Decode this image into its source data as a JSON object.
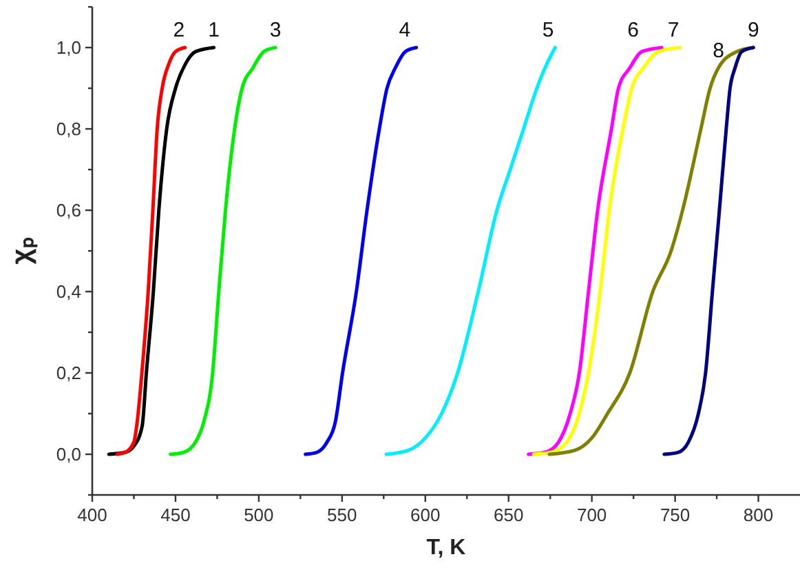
{
  "chart_data": {
    "type": "line",
    "xlabel": "T, K",
    "ylabel": "χₚ",
    "xlim": [
      400,
      825
    ],
    "ylim": [
      -0.1,
      1.1
    ],
    "xticks": [
      400,
      {
        "value": 425,
        "label": null
      },
      450,
      {
        "value": 475,
        "label": null
      },
      500,
      {
        "value": 525,
        "label": null
      },
      550,
      {
        "value": 575,
        "label": null
      },
      600,
      {
        "value": 625,
        "label": null
      },
      650,
      {
        "value": 675,
        "label": null
      },
      700,
      {
        "value": 725,
        "label": null
      },
      750,
      {
        "value": 775,
        "label": null
      },
      800
    ],
    "yticks": [
      {
        "value": -0.1,
        "label": null
      },
      {
        "value": 0,
        "label": "0,0"
      },
      {
        "value": 0.1,
        "label": null
      },
      {
        "value": 0.2,
        "label": "0,2"
      },
      {
        "value": 0.3,
        "label": null
      },
      {
        "value": 0.4,
        "label": "0,4"
      },
      {
        "value": 0.5,
        "label": null
      },
      {
        "value": 0.6,
        "label": "0,6"
      },
      {
        "value": 0.7,
        "label": null
      },
      {
        "value": 0.8,
        "label": "0,8"
      },
      {
        "value": 0.9,
        "label": null
      },
      {
        "value": 1,
        "label": "1,0"
      },
      {
        "value": 1.1,
        "label": null
      }
    ],
    "grid": false,
    "marker": "none",
    "line_style": "solid",
    "series": [
      {
        "color": "#000000",
        "x": [
          410,
          420,
          425,
          430,
          432.5,
          436.7,
          440,
          444.7,
          450,
          456,
          462,
          473
        ],
        "values": [
          0,
          0.005,
          0.02,
          0.07,
          0.2,
          0.4,
          0.6,
          0.8,
          0.9,
          0.96,
          0.99,
          1
        ]
      },
      {
        "color": "#ff0000",
        "x": [
          415,
          420,
          425,
          427,
          429.8,
          433.6,
          436.4,
          439,
          442,
          446,
          450,
          455.7
        ],
        "values": [
          0,
          0.005,
          0.03,
          0.08,
          0.2,
          0.4,
          0.6,
          0.8,
          0.9,
          0.96,
          0.99,
          1
        ]
      },
      {
        "color": "#00ee00",
        "x": [
          447,
          455,
          462,
          467,
          472.3,
          476,
          480,
          485.5,
          490,
          496.5,
          503,
          510
        ],
        "values": [
          0,
          0.005,
          0.03,
          0.08,
          0.2,
          0.4,
          0.6,
          0.8,
          0.9,
          0.95,
          0.99,
          1
        ]
      },
      {
        "color": "#0000ee",
        "x": [
          528,
          535,
          541,
          546,
          550.3,
          558.6,
          565,
          572.4,
          577,
          582,
          588,
          594.6
        ],
        "values": [
          0,
          0.005,
          0.03,
          0.08,
          0.2,
          0.4,
          0.6,
          0.8,
          0.9,
          0.95,
          0.99,
          1
        ]
      },
      {
        "color": "#00eeff",
        "x": [
          576.6,
          590,
          600,
          609.8,
          619.4,
          631.8,
          643,
          651,
          659,
          667,
          673,
          678
        ],
        "values": [
          0,
          0.01,
          0.04,
          0.1,
          0.2,
          0.4,
          0.6,
          0.7,
          0.8,
          0.9,
          0.96,
          1
        ]
      },
      {
        "color": "#ff00ff",
        "x": [
          662,
          672,
          680,
          687,
          692.5,
          698,
          703.5,
          711.8,
          716,
          722.8,
          730,
          742
        ],
        "values": [
          0,
          0.005,
          0.03,
          0.1,
          0.2,
          0.4,
          0.6,
          0.8,
          0.9,
          0.95,
          0.99,
          1
        ]
      },
      {
        "color": "#ffff00",
        "x": [
          665,
          676,
          685,
          692.5,
          698,
          705,
          710.5,
          718.7,
          724,
          731,
          740,
          753
        ],
        "values": [
          0,
          0.005,
          0.03,
          0.1,
          0.2,
          0.4,
          0.6,
          0.8,
          0.9,
          0.95,
          0.99,
          1
        ]
      },
      {
        "color": "#808000",
        "x": [
          674.5,
          690,
          700,
          709.4,
          722.8,
          736.6,
          747.6,
          754.5,
          765.5,
          771,
          776,
          787,
          797
        ],
        "values": [
          0,
          0.01,
          0.04,
          0.1,
          0.2,
          0.4,
          0.5,
          0.6,
          0.8,
          0.9,
          0.95,
          0.99,
          1
        ]
      },
      {
        "color": "#000080",
        "x": [
          743.5,
          752,
          758,
          764,
          768.3,
          772.4,
          776.6,
          780.7,
          783,
          786,
          790,
          797
        ],
        "values": [
          0,
          0.005,
          0.03,
          0.1,
          0.2,
          0.4,
          0.6,
          0.8,
          0.9,
          0.95,
          0.99,
          1
        ]
      }
    ],
    "annotations": [
      {
        "text": "1",
        "x": 473,
        "y": 1
      },
      {
        "text": "2",
        "x": 452,
        "y": 1
      },
      {
        "text": "3",
        "x": 510,
        "y": 1
      },
      {
        "text": "4",
        "x": 587.6,
        "y": 1
      },
      {
        "text": "5",
        "x": 673.7,
        "y": 1
      },
      {
        "text": "6",
        "x": 724.8,
        "y": 1
      },
      {
        "text": "7",
        "x": 749,
        "y": 1
      },
      {
        "text": "8",
        "x": 776,
        "y": 0.95
      },
      {
        "text": "9",
        "x": 797,
        "y": 1
      }
    ]
  }
}
